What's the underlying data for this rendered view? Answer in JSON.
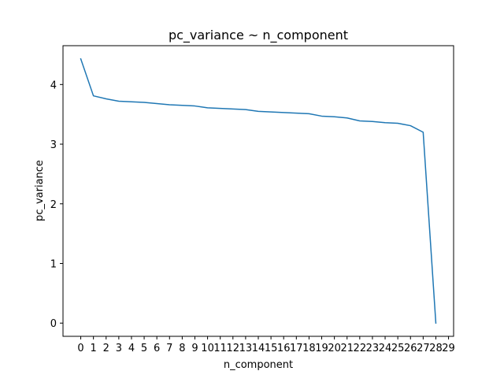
{
  "chart_data": {
    "type": "line",
    "title": "pc_variance ~ n_component",
    "xlabel": "n_component",
    "ylabel": "pc_variance",
    "x": [
      0,
      1,
      2,
      3,
      4,
      5,
      6,
      7,
      8,
      9,
      10,
      11,
      12,
      13,
      14,
      15,
      16,
      17,
      18,
      19,
      20,
      21,
      22,
      23,
      24,
      25,
      26,
      27,
      28
    ],
    "series": [
      {
        "values": [
          4.43,
          3.81,
          3.76,
          3.72,
          3.71,
          3.7,
          3.68,
          3.66,
          3.65,
          3.64,
          3.61,
          3.6,
          3.59,
          3.58,
          3.55,
          3.54,
          3.53,
          3.52,
          3.51,
          3.47,
          3.46,
          3.44,
          3.39,
          3.38,
          3.36,
          3.35,
          3.31,
          3.2,
          0.0
        ],
        "color": "#1f77b4"
      }
    ],
    "xticks": [
      "0",
      "1",
      "2",
      "3",
      "4",
      "5",
      "6",
      "7",
      "8",
      "9",
      "10",
      "11",
      "12",
      "13",
      "14",
      "15",
      "16",
      "17",
      "18",
      "19",
      "20",
      "21",
      "22",
      "23",
      "24",
      "25",
      "26",
      "27",
      "28",
      "29"
    ],
    "yticks": [
      "0",
      "1",
      "2",
      "3",
      "4"
    ],
    "xlim": [
      -1.4,
      29.4
    ],
    "ylim": [
      -0.2215,
      4.651
    ],
    "grid": false,
    "legend": "none"
  }
}
